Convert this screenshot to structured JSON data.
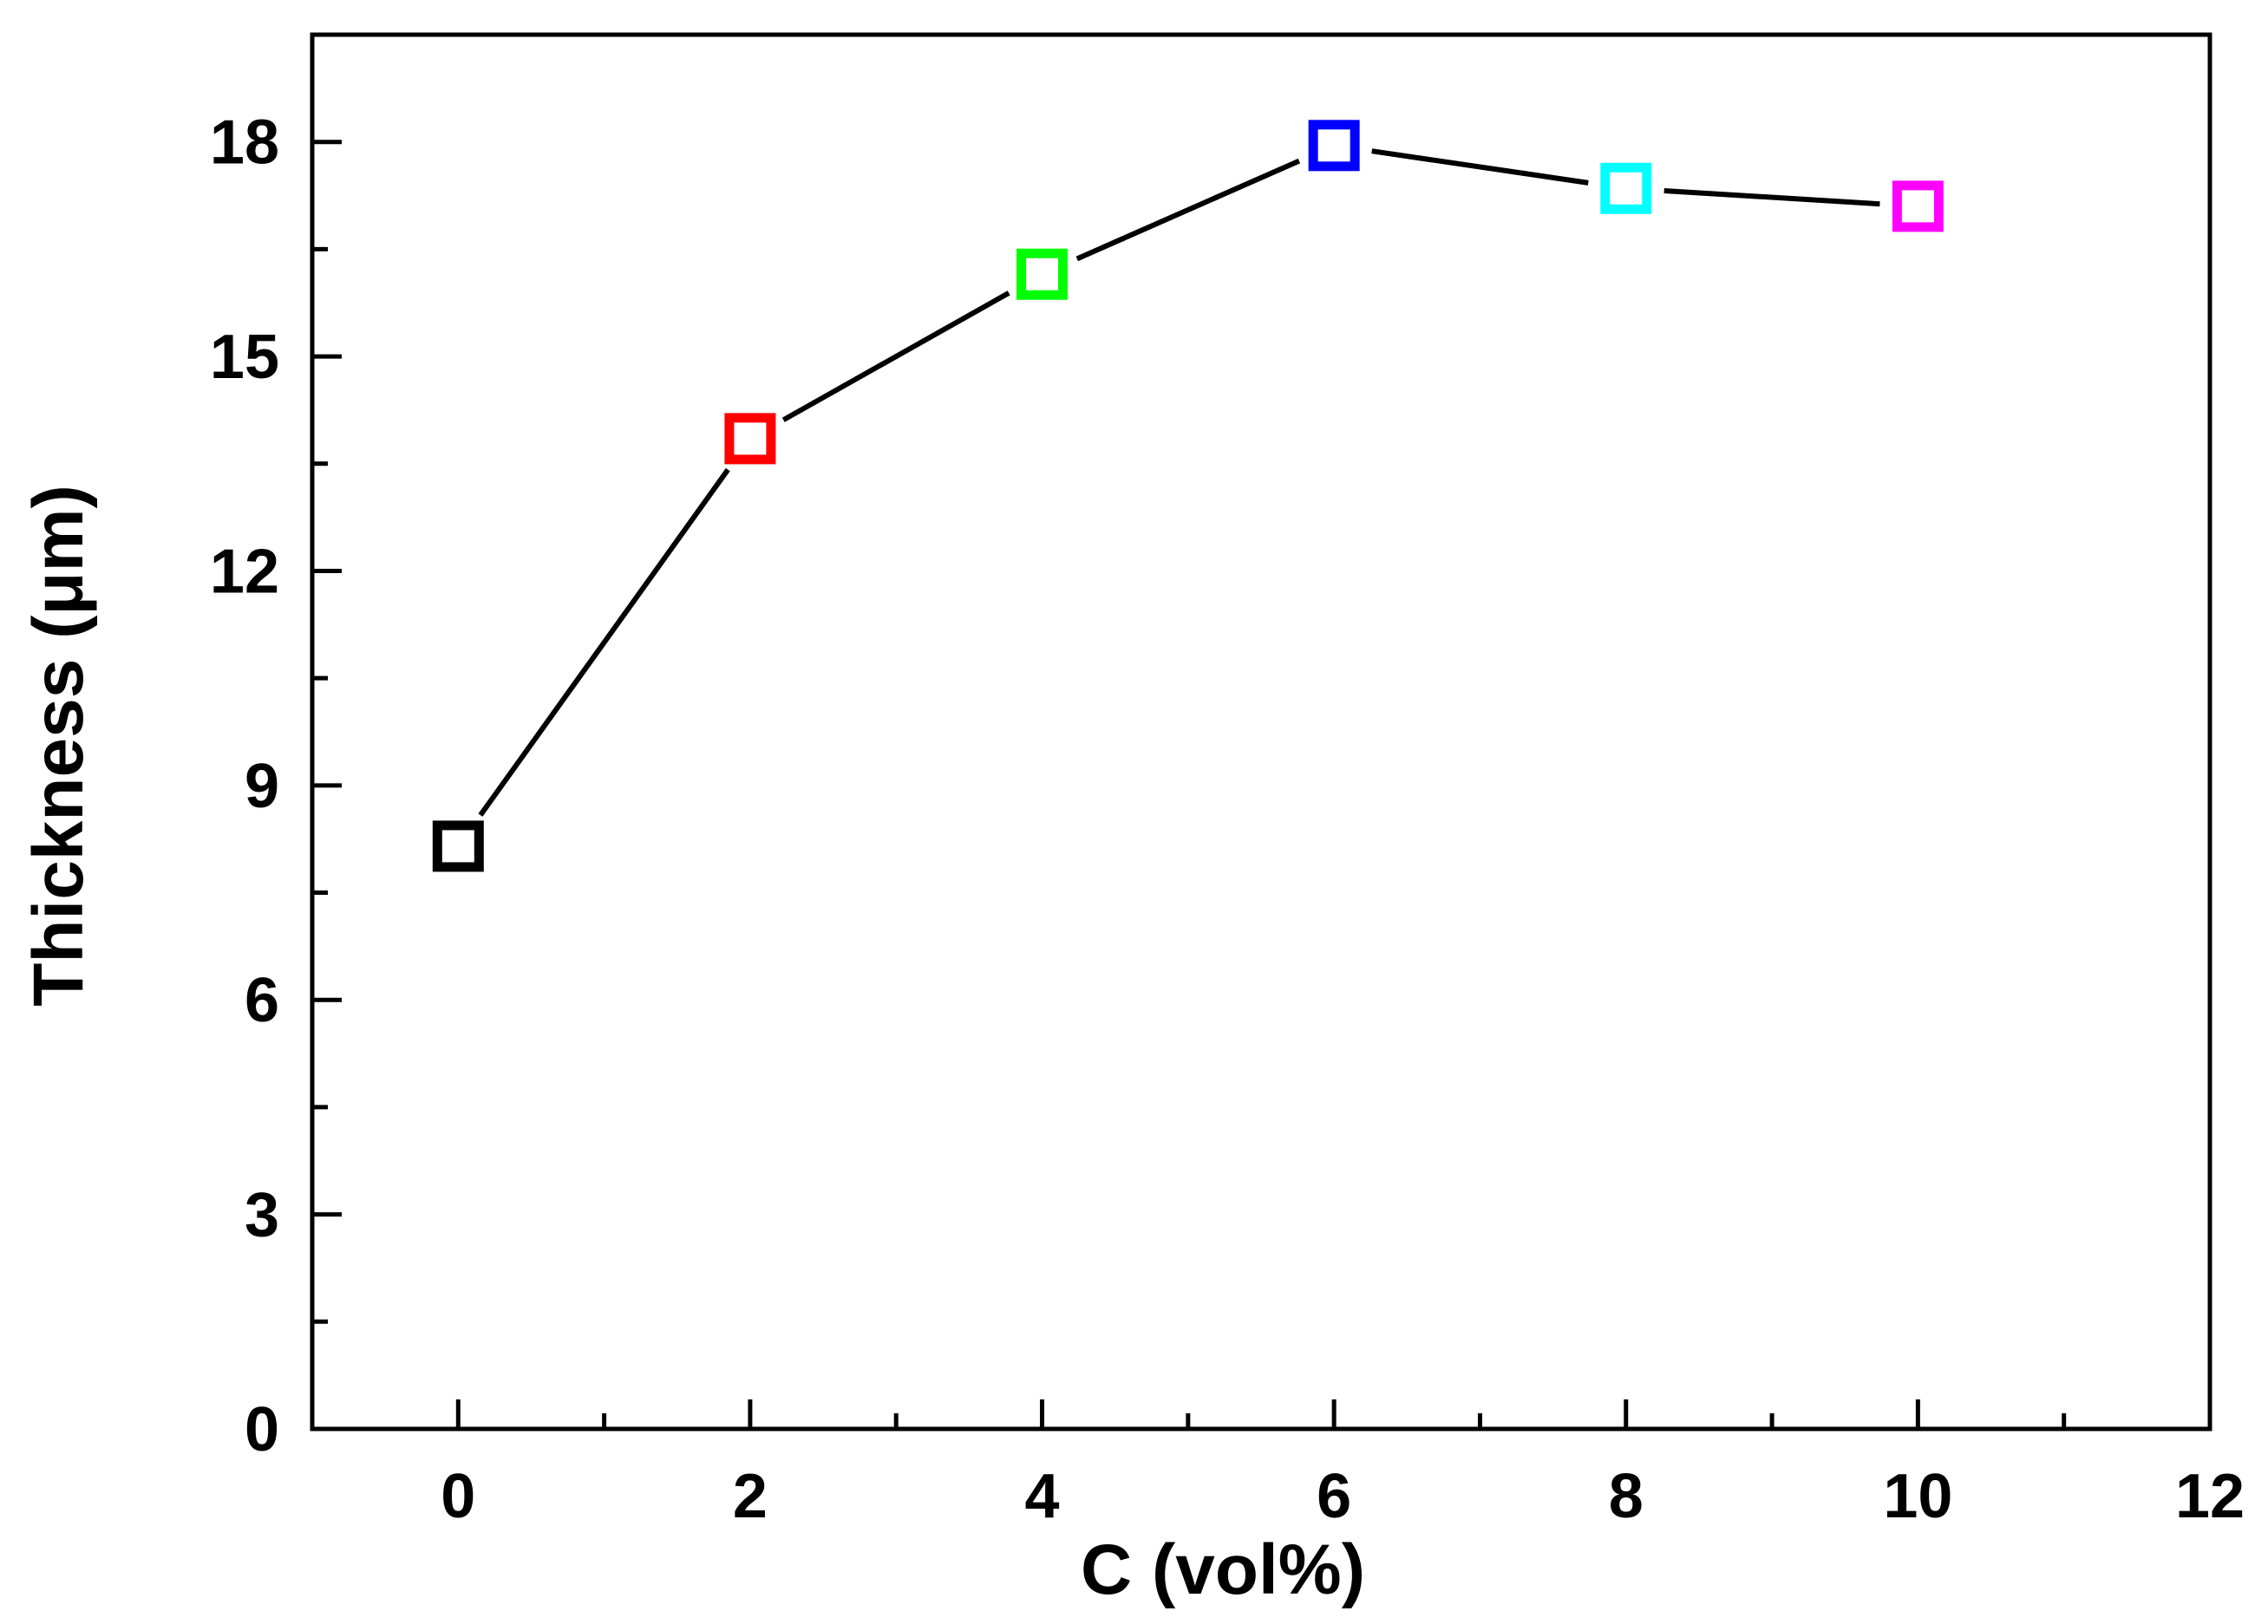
{
  "chart_data": {
    "type": "line",
    "xlabel": "C (vol%)",
    "ylabel": "Thickness (μm)",
    "xlim": [
      -1,
      12
    ],
    "ylim": [
      0,
      19.5
    ],
    "x_ticks": [
      0,
      2,
      4,
      6,
      8,
      10,
      12
    ],
    "x_tick_labels": [
      "0",
      "2",
      "4",
      "6",
      "8",
      "10",
      "12"
    ],
    "x_minor_ticks": [
      1,
      3,
      5,
      7,
      9,
      11
    ],
    "y_ticks": [
      0,
      3,
      6,
      9,
      12,
      15,
      18
    ],
    "y_tick_labels": [
      "0",
      "3",
      "6",
      "9",
      "12",
      "15",
      "18"
    ],
    "y_minor_ticks": [
      1.5,
      4.5,
      7.5,
      10.5,
      13.5,
      16.5,
      19.5
    ],
    "grid": false,
    "legend": "none",
    "line_color": "#000000",
    "series": [
      {
        "x": [
          0,
          2,
          4,
          6,
          8,
          10
        ],
        "y": [
          8.15,
          13.85,
          16.15,
          17.95,
          17.35,
          17.1
        ],
        "marker": "open-square",
        "marker_colors": [
          "#000000",
          "#ff0000",
          "#00ff00",
          "#0000ff",
          "#00ffff",
          "#ff00ff"
        ]
      }
    ]
  }
}
